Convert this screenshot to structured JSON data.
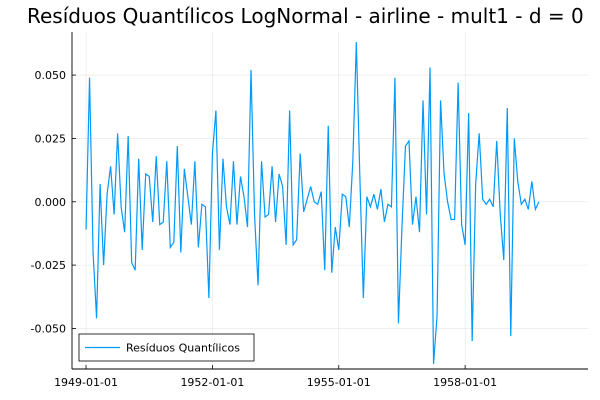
{
  "chart_data": {
    "type": "line",
    "title": "Resíduos Quantílicos LogNormal - airline - mult1 - d = 0",
    "xlabel": "",
    "ylabel": "",
    "x_start": "1949-01-01",
    "x_frequency": "monthly",
    "x_tick_labels": [
      "1949-01-01",
      "1952-01-01",
      "1955-01-01",
      "1958-01-01"
    ],
    "x_range": [
      "1948-09-01",
      "1960-12-01"
    ],
    "y_ticks": [
      0.05,
      0.025,
      0.0,
      -0.025,
      -0.05
    ],
    "y_tick_labels": [
      "0.050",
      "0.025",
      "0.000",
      "-0.025",
      "-0.050"
    ],
    "ylim": [
      -0.066,
      0.067
    ],
    "grid": true,
    "legend_position": "bottom-left",
    "color": "#009AFA",
    "series": [
      {
        "name": "Resíduos Quantílicos",
        "values": [
          -0.011,
          0.049,
          -0.02,
          -0.046,
          0.007,
          -0.025,
          0.003,
          0.014,
          -0.005,
          0.027,
          -0.002,
          -0.012,
          0.026,
          -0.024,
          -0.027,
          0.017,
          -0.019,
          0.011,
          0.01,
          -0.008,
          0.018,
          -0.009,
          -0.008,
          0.016,
          -0.018,
          -0.016,
          0.022,
          -0.02,
          0.013,
          0.002,
          -0.009,
          0.016,
          -0.018,
          -0.001,
          -0.002,
          -0.038,
          0.019,
          0.036,
          -0.019,
          0.017,
          -0.002,
          -0.009,
          0.016,
          -0.009,
          0.01,
          0.002,
          -0.01,
          0.052,
          -0.005,
          -0.033,
          0.016,
          -0.006,
          -0.005,
          0.014,
          -0.008,
          0.011,
          0.006,
          -0.017,
          0.036,
          -0.017,
          -0.015,
          0.019,
          -0.004,
          0.001,
          0.006,
          0.0,
          -0.001,
          0.004,
          -0.027,
          0.03,
          -0.028,
          -0.01,
          -0.019,
          0.003,
          0.002,
          -0.01,
          0.016,
          0.063,
          0.01,
          -0.038,
          0.002,
          -0.002,
          0.003,
          -0.003,
          0.005,
          -0.008,
          -0.001,
          -0.002,
          0.049,
          -0.048,
          -0.01,
          0.022,
          0.024,
          -0.009,
          0.002,
          -0.012,
          0.04,
          -0.005,
          0.053,
          -0.064,
          -0.045,
          0.04,
          0.011,
          0.0,
          -0.007,
          -0.007,
          0.047,
          -0.009,
          -0.017,
          0.035,
          -0.055,
          0.007,
          0.027,
          0.001,
          -0.001,
          0.001,
          -0.002,
          0.024,
          -0.005,
          -0.023,
          0.037,
          -0.053,
          0.025,
          0.008,
          -0.001,
          0.001,
          -0.003,
          0.008,
          -0.003,
          0.0
        ]
      }
    ]
  }
}
